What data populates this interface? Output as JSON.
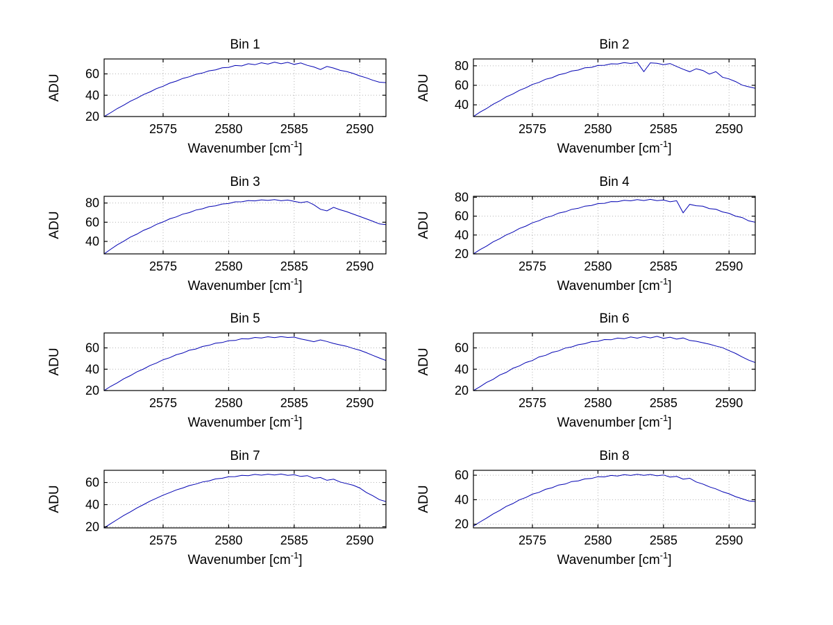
{
  "figure": {
    "background": "#ffffff",
    "line_color": "#0000b2",
    "grid_color": "#b3b3b3",
    "axis_color": "#000000"
  },
  "chart_data": [
    {
      "type": "line",
      "title": "Bin 1",
      "ylabel": "ADU",
      "xlabel": {
        "pre": "Wavenumber [cm",
        "sup": "-1",
        "post": "]"
      },
      "x_start": 2570.5,
      "x_end": 2592,
      "xlim": [
        2570.5,
        2592
      ],
      "ylim": [
        20,
        74
      ],
      "xticks": [
        2575,
        2580,
        2585,
        2590
      ],
      "yticks": [
        20,
        40,
        60
      ],
      "grid": true,
      "y": [
        20.0,
        23.6,
        27.5,
        30.7,
        34.4,
        37.2,
        40.6,
        43.1,
        46.2,
        48.4,
        51.3,
        53.2,
        55.7,
        57.3,
        59.6,
        60.8,
        62.9,
        63.8,
        65.7,
        66.1,
        67.9,
        67.5,
        69.5,
        68.6,
        70.4,
        69.2,
        71.0,
        69.5,
        70.8,
        68.9,
        70.2,
        68.0,
        66.5,
        64.1,
        67.0,
        65.5,
        63.3,
        62.2,
        60.4,
        58.1,
        56.3,
        54.0,
        52.2,
        51.8
      ]
    },
    {
      "type": "line",
      "title": "Bin 2",
      "ylabel": "ADU",
      "xlabel": {
        "pre": "Wavenumber [cm",
        "sup": "-1",
        "post": "]"
      },
      "x_start": 2570.5,
      "x_end": 2592,
      "xlim": [
        2570.5,
        2592
      ],
      "ylim": [
        28,
        87
      ],
      "xticks": [
        2575,
        2580,
        2585,
        2590
      ],
      "yticks": [
        40,
        60,
        80
      ],
      "grid": true,
      "y": [
        28.0,
        32.5,
        36.2,
        40.6,
        44.0,
        48.1,
        51.0,
        54.8,
        57.4,
        60.9,
        63.0,
        66.2,
        67.8,
        70.7,
        72.2,
        74.6,
        75.6,
        77.9,
        78.4,
        80.3,
        80.5,
        82.0,
        81.8,
        83.2,
        82.4,
        83.5,
        74.0,
        83.0,
        82.5,
        81.2,
        82.3,
        79.3,
        76.5,
        73.9,
        77.0,
        75.2,
        71.5,
        74.0,
        68.3,
        66.5,
        63.8,
        60.2,
        58.5,
        57.0
      ]
    },
    {
      "type": "line",
      "title": "Bin 3",
      "ylabel": "ADU",
      "xlabel": {
        "pre": "Wavenumber [cm",
        "sup": "-1",
        "post": "]"
      },
      "x_start": 2570.5,
      "x_end": 2592,
      "xlim": [
        2570.5,
        2592
      ],
      "ylim": [
        27,
        87
      ],
      "xticks": [
        2575,
        2580,
        2585,
        2590
      ],
      "yticks": [
        40,
        60,
        80
      ],
      "grid": true,
      "y": [
        27.0,
        31.8,
        36.5,
        40.2,
        44.5,
        47.6,
        51.5,
        54.2,
        57.8,
        60.3,
        63.5,
        65.5,
        68.4,
        70.0,
        72.7,
        74.0,
        76.2,
        77.1,
        79.0,
        79.5,
        81.2,
        81.3,
        82.6,
        82.2,
        83.3,
        82.7,
        83.6,
        82.4,
        83.1,
        81.7,
        80.4,
        81.5,
        78.2,
        73.5,
        71.8,
        75.5,
        73.0,
        71.0,
        68.5,
        66.0,
        63.5,
        61.0,
        58.2,
        57.5
      ]
    },
    {
      "type": "line",
      "title": "Bin 4",
      "ylabel": "ADU",
      "xlabel": {
        "pre": "Wavenumber [cm",
        "sup": "-1",
        "post": "]"
      },
      "x_start": 2570.5,
      "x_end": 2592,
      "xlim": [
        2570.5,
        2592
      ],
      "ylim": [
        20,
        81
      ],
      "xticks": [
        2575,
        2580,
        2585,
        2590
      ],
      "yticks": [
        20,
        40,
        60,
        80
      ],
      "grid": true,
      "y": [
        20.0,
        24.5,
        28.2,
        32.7,
        36.0,
        40.1,
        43.0,
        46.9,
        49.4,
        52.9,
        55.1,
        58.4,
        60.2,
        63.2,
        64.6,
        67.2,
        68.3,
        70.6,
        71.3,
        73.3,
        73.6,
        75.4,
        75.3,
        76.8,
        76.2,
        77.5,
        76.5,
        77.8,
        76.4,
        77.0,
        75.2,
        76.3,
        63.5,
        72.5,
        71.0,
        70.5,
        68.0,
        67.3,
        64.5,
        63.0,
        60.0,
        58.5,
        55.0,
        53.5
      ]
    },
    {
      "type": "line",
      "title": "Bin 5",
      "ylabel": "ADU",
      "xlabel": {
        "pre": "Wavenumber [cm",
        "sup": "-1",
        "post": "]"
      },
      "x_start": 2570.5,
      "x_end": 2592,
      "xlim": [
        2570.5,
        2592
      ],
      "ylim": [
        20,
        74
      ],
      "xticks": [
        2575,
        2580,
        2585,
        2590
      ],
      "yticks": [
        20,
        40,
        60
      ],
      "grid": true,
      "y": [
        20.0,
        23.9,
        27.2,
        31.0,
        34.0,
        37.5,
        40.2,
        43.5,
        45.8,
        48.9,
        50.8,
        53.6,
        55.2,
        57.8,
        59.0,
        61.3,
        62.4,
        64.4,
        65.0,
        66.8,
        67.0,
        68.6,
        68.4,
        69.8,
        69.3,
        70.4,
        69.6,
        70.6,
        69.8,
        70.1,
        68.4,
        67.2,
        65.8,
        67.5,
        66.0,
        64.2,
        62.8,
        61.5,
        59.5,
        57.8,
        55.5,
        53.0,
        50.5,
        48.2
      ]
    },
    {
      "type": "line",
      "title": "Bin 6",
      "ylabel": "ADU",
      "xlabel": {
        "pre": "Wavenumber [cm",
        "sup": "-1",
        "post": "]"
      },
      "x_start": 2570.5,
      "x_end": 2592,
      "xlim": [
        2570.5,
        2592
      ],
      "ylim": [
        20,
        74
      ],
      "xticks": [
        2575,
        2580,
        2585,
        2590
      ],
      "yticks": [
        20,
        40,
        60
      ],
      "grid": true,
      "y": [
        20.0,
        23.5,
        27.6,
        30.5,
        34.5,
        37.0,
        40.8,
        43.0,
        46.3,
        48.2,
        51.5,
        53.0,
        55.8,
        57.2,
        59.8,
        60.9,
        63.0,
        63.9,
        65.8,
        66.2,
        67.8,
        67.6,
        69.2,
        68.6,
        70.2,
        69.1,
        70.6,
        69.4,
        70.8,
        69.0,
        70.0,
        68.2,
        69.3,
        67.0,
        66.2,
        64.8,
        63.5,
        61.8,
        60.2,
        57.5,
        54.8,
        51.5,
        48.5,
        46.3
      ]
    },
    {
      "type": "line",
      "title": "Bin 7",
      "ylabel": "ADU",
      "xlabel": {
        "pre": "Wavenumber [cm",
        "sup": "-1",
        "post": "]"
      },
      "x_start": 2570.5,
      "x_end": 2592,
      "xlim": [
        2570.5,
        2592
      ],
      "ylim": [
        19,
        71
      ],
      "xticks": [
        2575,
        2580,
        2585,
        2590
      ],
      "yticks": [
        20,
        40,
        60
      ],
      "grid": true,
      "y": [
        19.0,
        22.8,
        26.5,
        30.2,
        33.5,
        37.0,
        40.0,
        43.2,
        45.8,
        48.6,
        50.8,
        53.3,
        55.0,
        57.2,
        58.6,
        60.5,
        61.5,
        63.2,
        63.8,
        65.2,
        65.3,
        66.5,
        66.2,
        67.3,
        66.6,
        67.5,
        66.8,
        67.6,
        66.5,
        67.0,
        65.5,
        66.2,
        63.8,
        64.5,
        62.0,
        63.0,
        60.5,
        59.0,
        57.5,
        55.0,
        51.0,
        48.0,
        44.5,
        42.8
      ]
    },
    {
      "type": "line",
      "title": "Bin 8",
      "ylabel": "ADU",
      "xlabel": {
        "pre": "Wavenumber [cm",
        "sup": "-1",
        "post": "]"
      },
      "x_start": 2570.5,
      "x_end": 2592,
      "xlim": [
        2570.5,
        2592
      ],
      "ylim": [
        17,
        64
      ],
      "xticks": [
        2575,
        2580,
        2585,
        2590
      ],
      "yticks": [
        20,
        40,
        60
      ],
      "grid": true,
      "y": [
        18.5,
        21.8,
        25.0,
        28.4,
        31.2,
        34.5,
        36.8,
        39.8,
        41.8,
        44.5,
        46.0,
        48.5,
        49.8,
        52.0,
        52.8,
        54.8,
        55.4,
        57.0,
        57.3,
        58.8,
        58.6,
        59.8,
        59.3,
        60.5,
        59.8,
        60.8,
        59.9,
        60.6,
        59.5,
        60.2,
        58.5,
        59.0,
        56.8,
        57.5,
        54.5,
        52.8,
        50.5,
        48.8,
        46.5,
        44.8,
        42.5,
        40.8,
        39.0,
        38.5
      ]
    }
  ]
}
